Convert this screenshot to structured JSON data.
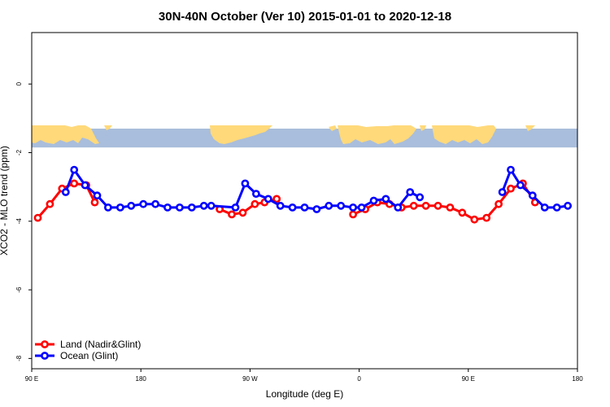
{
  "chart_data": {
    "type": "line",
    "title": "30N-40N October (Ver 10)   2015-01-01 to 2020-12-18",
    "xlabel": "Longitude (deg E)",
    "ylabel": "XCO2 - MLO trend (ppm)",
    "xlim": [
      90,
      540
    ],
    "ylim": [
      -8.3,
      1.5
    ],
    "x_ticks": [
      {
        "value": 90,
        "label": "90 E"
      },
      {
        "value": 180,
        "label": "180"
      },
      {
        "value": 270,
        "label": "90 W"
      },
      {
        "value": 360,
        "label": "0"
      },
      {
        "value": 450,
        "label": "90 E"
      },
      {
        "value": 540,
        "label": "180"
      }
    ],
    "y_ticks": [
      {
        "value": 0,
        "label": "0"
      },
      {
        "value": -2,
        "label": "-2"
      },
      {
        "value": -4,
        "label": "-4"
      },
      {
        "value": -6,
        "label": "-6"
      },
      {
        "value": -8,
        "label": "-8"
      }
    ],
    "grid": false,
    "legend_position": "bottom-left",
    "map_strip": {
      "y_top": -1.3,
      "y_bottom": -1.85,
      "land_color": "#FFD97A",
      "ocean_color": "#A9BEDC"
    },
    "series": [
      {
        "name": "Land (Nadir&Glint)",
        "color": "#FF0000",
        "segments": [
          {
            "x": [
              95,
              105,
              115,
              125,
              135,
              142
            ],
            "y": [
              -3.9,
              -3.5,
              -3.05,
              -2.9,
              -2.95,
              -3.45
            ]
          },
          {
            "x": [
              245,
              255,
              264,
              274,
              282,
              292
            ],
            "y": [
              -3.65,
              -3.8,
              -3.75,
              -3.5,
              -3.45,
              -3.35
            ]
          },
          {
            "x": [
              355,
              365,
              375,
              385,
              395,
              405,
              415,
              425,
              435,
              445,
              455,
              465,
              475,
              485,
              495,
              505
            ],
            "y": [
              -3.8,
              -3.65,
              -3.45,
              -3.5,
              -3.6,
              -3.55,
              -3.55,
              -3.55,
              -3.6,
              -3.75,
              -3.95,
              -3.9,
              -3.5,
              -3.05,
              -2.9,
              -3.45
            ]
          }
        ]
      },
      {
        "name": "Ocean (Glint)",
        "color": "#0000FF",
        "segments": [
          {
            "x": [
              118,
              125,
              134,
              144,
              153,
              163,
              172,
              182,
              192,
              202,
              212,
              222,
              232,
              238,
              258,
              266,
              275,
              285,
              295,
              305,
              315,
              325,
              335,
              345,
              355,
              362,
              372,
              382,
              392,
              402,
              410
            ],
            "y": [
              -3.15,
              -2.5,
              -2.95,
              -3.25,
              -3.6,
              -3.6,
              -3.55,
              -3.5,
              -3.5,
              -3.6,
              -3.6,
              -3.6,
              -3.55,
              -3.55,
              -3.6,
              -2.9,
              -3.2,
              -3.35,
              -3.55,
              -3.6,
              -3.6,
              -3.65,
              -3.55,
              -3.55,
              -3.6,
              -3.6,
              -3.4,
              -3.35,
              -3.6,
              -3.15,
              -3.3
            ]
          },
          {
            "x": [
              478,
              485,
              493,
              503,
              513,
              523,
              532
            ],
            "y": [
              -3.15,
              -2.5,
              -2.95,
              -3.25,
              -3.6,
              -3.6,
              -3.55
            ]
          }
        ]
      }
    ]
  }
}
